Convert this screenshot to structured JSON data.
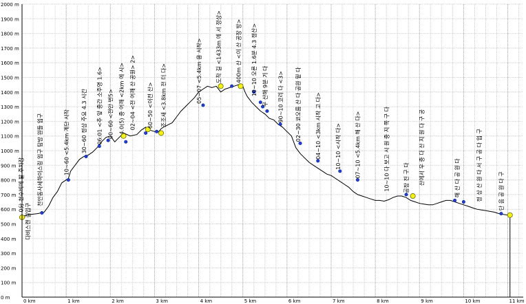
{
  "chart_data": {
    "type": "line",
    "title": "",
    "xlabel": "",
    "ylabel": "",
    "xlim": [
      0,
      11.35
    ],
    "ylim": [
      0,
      2000
    ],
    "x_ticks": [
      {
        "v": 0,
        "label": "0 km"
      },
      {
        "v": 1,
        "label": "1 km"
      },
      {
        "v": 2,
        "label": "2 km"
      },
      {
        "v": 3,
        "label": "3 km"
      },
      {
        "v": 4,
        "label": "4 km"
      },
      {
        "v": 5,
        "label": "5 km"
      },
      {
        "v": 6,
        "label": "6 km"
      },
      {
        "v": 7,
        "label": "7 km"
      },
      {
        "v": 8,
        "label": "8 km"
      },
      {
        "v": 9,
        "label": "9 km"
      },
      {
        "v": 10,
        "label": "10 km"
      },
      {
        "v": 11,
        "label": "11 km"
      }
    ],
    "y_ticks": [
      {
        "v": 0,
        "label": "0 m"
      },
      {
        "v": 100,
        "label": "100 m"
      },
      {
        "v": 200,
        "label": "200 m"
      },
      {
        "v": 300,
        "label": "300 m"
      },
      {
        "v": 400,
        "label": "400 m"
      },
      {
        "v": 500,
        "label": "500 m"
      },
      {
        "v": 600,
        "label": "600 m"
      },
      {
        "v": 700,
        "label": "700 m"
      },
      {
        "v": 800,
        "label": "800 m"
      },
      {
        "v": 900,
        "label": "900 m"
      },
      {
        "v": 1000,
        "label": "1000 m"
      },
      {
        "v": 1100,
        "label": "1100 m"
      },
      {
        "v": 1200,
        "label": "1200 m"
      },
      {
        "v": 1300,
        "label": "1300 m"
      },
      {
        "v": 1400,
        "label": "1400 m"
      },
      {
        "v": 1500,
        "label": "1500 m"
      },
      {
        "v": 1600,
        "label": "1600 m"
      },
      {
        "v": 1700,
        "label": "1700 m"
      },
      {
        "v": 1800,
        "label": "1800 m"
      },
      {
        "v": 1900,
        "label": "1900 m"
      },
      {
        "v": 2000,
        "label": "2000 m"
      }
    ],
    "series": [
      {
        "x": [
          0,
          0.1,
          0.2,
          0.35,
          0.5,
          0.6,
          0.7,
          0.8,
          0.9,
          1.0,
          1.05,
          1.1,
          1.2,
          1.3,
          1.4,
          1.5,
          1.6,
          1.7,
          1.8,
          1.9,
          2.0,
          2.1,
          2.2,
          2.3,
          2.45,
          2.6,
          2.7,
          2.8,
          2.9,
          3.0,
          3.1,
          3.15,
          3.2,
          3.3,
          3.4,
          3.5,
          3.6,
          3.7,
          3.8,
          3.9,
          4.0,
          4.1,
          4.2,
          4.3,
          4.4,
          4.5,
          4.6,
          4.7,
          4.8,
          4.9,
          5.0,
          5.05,
          5.1,
          5.2,
          5.3,
          5.4,
          5.5,
          5.6,
          5.7,
          5.8,
          5.9,
          6.0,
          6.1,
          6.15,
          6.2,
          6.3,
          6.4,
          6.5,
          6.6,
          6.7,
          6.8,
          6.9,
          7.0,
          7.1,
          7.2,
          7.3,
          7.4,
          7.5,
          7.6,
          7.7,
          7.8,
          7.9,
          8.0,
          8.1,
          8.2,
          8.3,
          8.4,
          8.5,
          8.6,
          8.7,
          8.8,
          8.9,
          9.0,
          9.1,
          9.2,
          9.3,
          9.4,
          9.5,
          9.6,
          9.7,
          9.8,
          9.9,
          10.0,
          10.1,
          10.2,
          10.3,
          10.4,
          10.5,
          10.6,
          10.7,
          10.8,
          10.9,
          11.0,
          11.05
        ],
        "y": [
          550,
          560,
          565,
          570,
          580,
          620,
          680,
          720,
          780,
          800,
          810,
          860,
          900,
          940,
          960,
          970,
          990,
          1020,
          1060,
          1090,
          1100,
          1060,
          1090,
          1120,
          1100,
          1110,
          1140,
          1160,
          1140,
          1130,
          1130,
          1150,
          1160,
          1175,
          1190,
          1230,
          1270,
          1300,
          1330,
          1360,
          1400,
          1420,
          1440,
          1430,
          1440,
          1400,
          1420,
          1430,
          1440,
          1450,
          1440,
          1400,
          1370,
          1330,
          1300,
          1270,
          1250,
          1220,
          1210,
          1180,
          1160,
          1130,
          1100,
          1060,
          1020,
          980,
          950,
          920,
          900,
          880,
          860,
          840,
          830,
          810,
          790,
          770,
          750,
          720,
          700,
          690,
          680,
          670,
          660,
          660,
          655,
          665,
          680,
          690,
          690,
          680,
          660,
          650,
          640,
          635,
          630,
          630,
          640,
          650,
          660,
          660,
          650,
          640,
          630,
          620,
          610,
          600,
          595,
          590,
          585,
          580,
          570,
          565,
          560,
          555
        ]
      }
    ],
    "markers_blue": [
      {
        "x": 0.45,
        "y": 575
      },
      {
        "x": 1.05,
        "y": 800
      },
      {
        "x": 1.45,
        "y": 960
      },
      {
        "x": 1.75,
        "y": 1030
      },
      {
        "x": 1.95,
        "y": 1070
      },
      {
        "x": 2.35,
        "y": 1060
      },
      {
        "x": 2.8,
        "y": 1120
      },
      {
        "x": 3.05,
        "y": 1130
      },
      {
        "x": 4.1,
        "y": 1310
      },
      {
        "x": 4.75,
        "y": 1440
      },
      {
        "x": 5.25,
        "y": 1400
      },
      {
        "x": 5.4,
        "y": 1330
      },
      {
        "x": 5.45,
        "y": 1300
      },
      {
        "x": 5.55,
        "y": 1270
      },
      {
        "x": 5.85,
        "y": 1180
      },
      {
        "x": 6.3,
        "y": 1050
      },
      {
        "x": 6.7,
        "y": 930
      },
      {
        "x": 7.2,
        "y": 860
      },
      {
        "x": 7.6,
        "y": 800
      },
      {
        "x": 8.7,
        "y": 700
      },
      {
        "x": 9.8,
        "y": 660
      },
      {
        "x": 10.0,
        "y": 650
      },
      {
        "x": 10.85,
        "y": 570
      }
    ],
    "markers_yellow": [
      {
        "x": 0.0,
        "y": 545
      },
      {
        "x": 2.3,
        "y": 1100
      },
      {
        "x": 2.85,
        "y": 1145
      },
      {
        "x": 3.15,
        "y": 1120
      },
      {
        "x": 4.5,
        "y": 1440
      },
      {
        "x": 4.95,
        "y": 1440
      },
      {
        "x": 8.85,
        "y": 690
      },
      {
        "x": 11.05,
        "y": 560
      }
    ],
    "annotations": [
      {
        "x": 0.02,
        "y": 580,
        "text": "0分 천수비에 발 주차장"
      },
      {
        "x": 0.18,
        "y": 390,
        "text": "다비스캔 길입구"
      },
      {
        "x": 0.45,
        "y": 620,
        "text": "천안동사세하이스링 입구 탐방 원들 입구"
      },
      {
        "x": 1.05,
        "y": 830,
        "text": "10~60 <5.4km 계단 시작"
      },
      {
        "x": 1.45,
        "y": 980,
        "text": "30~60 정상 주요 4.3 시간"
      },
      {
        "x": 1.8,
        "y": 1040,
        "text": "06:01 <추 앞 중간 소주영 1.6>"
      },
      {
        "x": 2.05,
        "y": 1080,
        "text": "00~60 <전안 번5>"
      },
      {
        "x": 2.3,
        "y": 1110,
        "text": "4.0(5) 중 어깨 <2km 에 시>"
      },
      {
        "x": 2.55,
        "y": 1140,
        "text": "02~04 <전 어깨 산 공원> 2>"
      },
      {
        "x": 2.95,
        "y": 1150,
        "text": "60~50 <이전 산>"
      },
      {
        "x": 3.25,
        "y": 1160,
        "text": "조조새 <3.8km 전 터 다>"
      },
      {
        "x": 4.05,
        "y": 1320,
        "text": "05~07 <5.4km 용 시작>"
      },
      {
        "x": 4.5,
        "y": 1460,
        "text": "도착 길 <1433m 에 서 정상>"
      },
      {
        "x": 4.95,
        "y": 1460,
        "text": "400m 산 <이 산 공장 방>"
      },
      {
        "x": 5.3,
        "y": 1370,
        "text": "10~10 오른 1.6분 4.3 정산>"
      },
      {
        "x": 5.55,
        "y": 1300,
        "text": "우 산해 9분 기 다"
      },
      {
        "x": 5.9,
        "y": 1190,
        "text": "90~10 코리 다 <3>"
      },
      {
        "x": 6.3,
        "y": 1060,
        "text": "02~30 코오름 산 다 공원 밑 다"
      },
      {
        "x": 6.75,
        "y": 940,
        "text": "04~10 <3km 시작 고 다>"
      },
      {
        "x": 7.2,
        "y": 870,
        "text": "10~10 <시작 다>"
      },
      {
        "x": 7.65,
        "y": 810,
        "text": "07~10 <5.4km 해 산 다>"
      },
      {
        "x": 8.3,
        "y": 720,
        "text": "10~10 다 보고 시 원 중 지 쪽 구 다"
      },
      {
        "x": 8.75,
        "y": 710,
        "text": "공장 진 구 다"
      },
      {
        "x": 9.1,
        "y": 760,
        "text": "산에서 우 중 다 산 지 원 다 구 공"
      },
      {
        "x": 9.9,
        "y": 680,
        "text": "해 산 다 공 원 다"
      },
      {
        "x": 10.4,
        "y": 650,
        "text": "정 상 산 원 다 서 구 공 다 입 구"
      },
      {
        "x": 10.9,
        "y": 590,
        "text": "단 음 공 원 다 구"
      }
    ]
  }
}
